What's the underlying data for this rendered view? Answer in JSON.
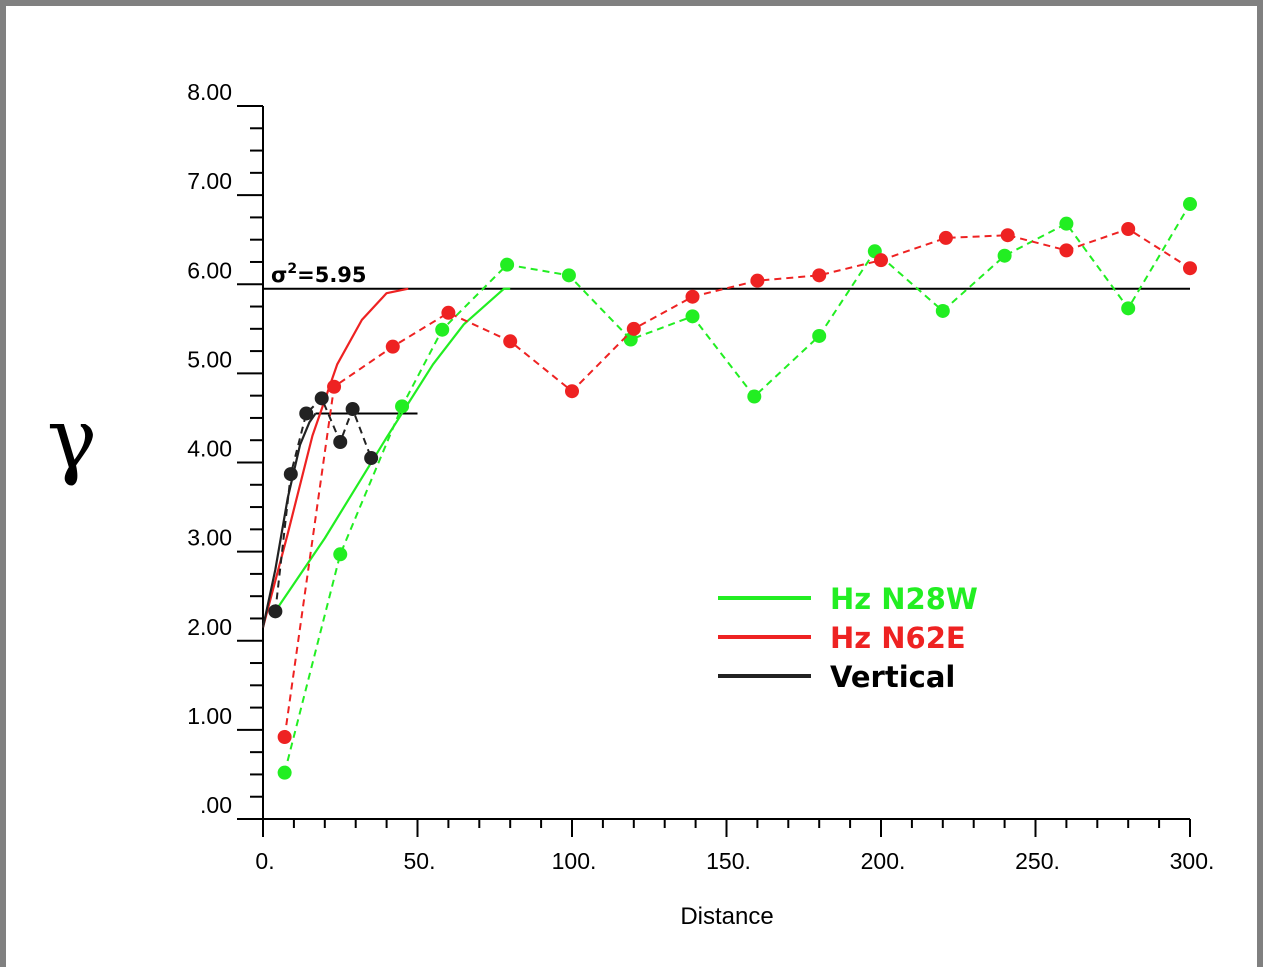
{
  "chart_data": {
    "type": "line",
    "xlabel": "Distance",
    "ylabel": "γ",
    "xlim": [
      0,
      300
    ],
    "ylim": [
      0,
      8
    ],
    "x_ticks": [
      "0.",
      "50.",
      "100.",
      "150.",
      "200.",
      "250.",
      "300."
    ],
    "y_ticks": [
      ".00",
      "1.00",
      "2.00",
      "3.00",
      "4.00",
      "5.00",
      "6.00",
      "7.00",
      "8.00"
    ],
    "grid": false,
    "legend_position": "center-right",
    "sill": {
      "label_prefix": "σ",
      "label_sup": "2",
      "label_value": "=5.95",
      "value": 5.95,
      "x_range": [
        0,
        300
      ]
    },
    "vertical_sill": {
      "value": 4.55,
      "x_range": [
        17,
        50
      ]
    },
    "series": [
      {
        "name": "Hz N28W",
        "color": "#22ee22",
        "experimental": [
          [
            7,
            0.52
          ],
          [
            25,
            2.97
          ],
          [
            45,
            4.63
          ],
          [
            58,
            5.49
          ],
          [
            79,
            6.22
          ],
          [
            99,
            6.1
          ],
          [
            119,
            5.38
          ],
          [
            139,
            5.64
          ],
          [
            159,
            4.74
          ],
          [
            180,
            5.42
          ],
          [
            198,
            6.37
          ],
          [
            220,
            5.7
          ],
          [
            240,
            6.32
          ],
          [
            260,
            6.68
          ],
          [
            280,
            5.73
          ],
          [
            300,
            6.9
          ]
        ],
        "model": [
          [
            3,
            2.28
          ],
          [
            20,
            3.15
          ],
          [
            40,
            4.28
          ],
          [
            55,
            5.1
          ],
          [
            65,
            5.55
          ],
          [
            78,
            5.95
          ],
          [
            80,
            5.95
          ]
        ]
      },
      {
        "name": "Hz N62E",
        "color": "#ee2222",
        "experimental": [
          [
            7,
            0.92
          ],
          [
            23,
            4.85
          ],
          [
            42,
            5.3
          ],
          [
            60,
            5.68
          ],
          [
            80,
            5.36
          ],
          [
            100,
            4.8
          ],
          [
            120,
            5.5
          ],
          [
            139,
            5.86
          ],
          [
            160,
            6.04
          ],
          [
            180,
            6.1
          ],
          [
            200,
            6.27
          ],
          [
            221,
            6.52
          ],
          [
            241,
            6.55
          ],
          [
            260,
            6.38
          ],
          [
            280,
            6.62
          ],
          [
            300,
            6.18
          ]
        ],
        "model": [
          [
            0,
            2.15
          ],
          [
            8,
            3.2
          ],
          [
            16,
            4.3
          ],
          [
            24,
            5.1
          ],
          [
            32,
            5.6
          ],
          [
            40,
            5.9
          ],
          [
            47,
            5.95
          ]
        ]
      },
      {
        "name": "Vertical",
        "color": "#222222",
        "experimental": [
          [
            4,
            2.33
          ],
          [
            9,
            3.87
          ],
          [
            14,
            4.55
          ],
          [
            19,
            4.72
          ],
          [
            25,
            4.23
          ],
          [
            29,
            4.6
          ],
          [
            35,
            4.05
          ]
        ],
        "model": [
          [
            0,
            2.15
          ],
          [
            4,
            2.8
          ],
          [
            8,
            3.6
          ],
          [
            12,
            4.2
          ],
          [
            15,
            4.45
          ],
          [
            17,
            4.55
          ]
        ]
      }
    ]
  }
}
